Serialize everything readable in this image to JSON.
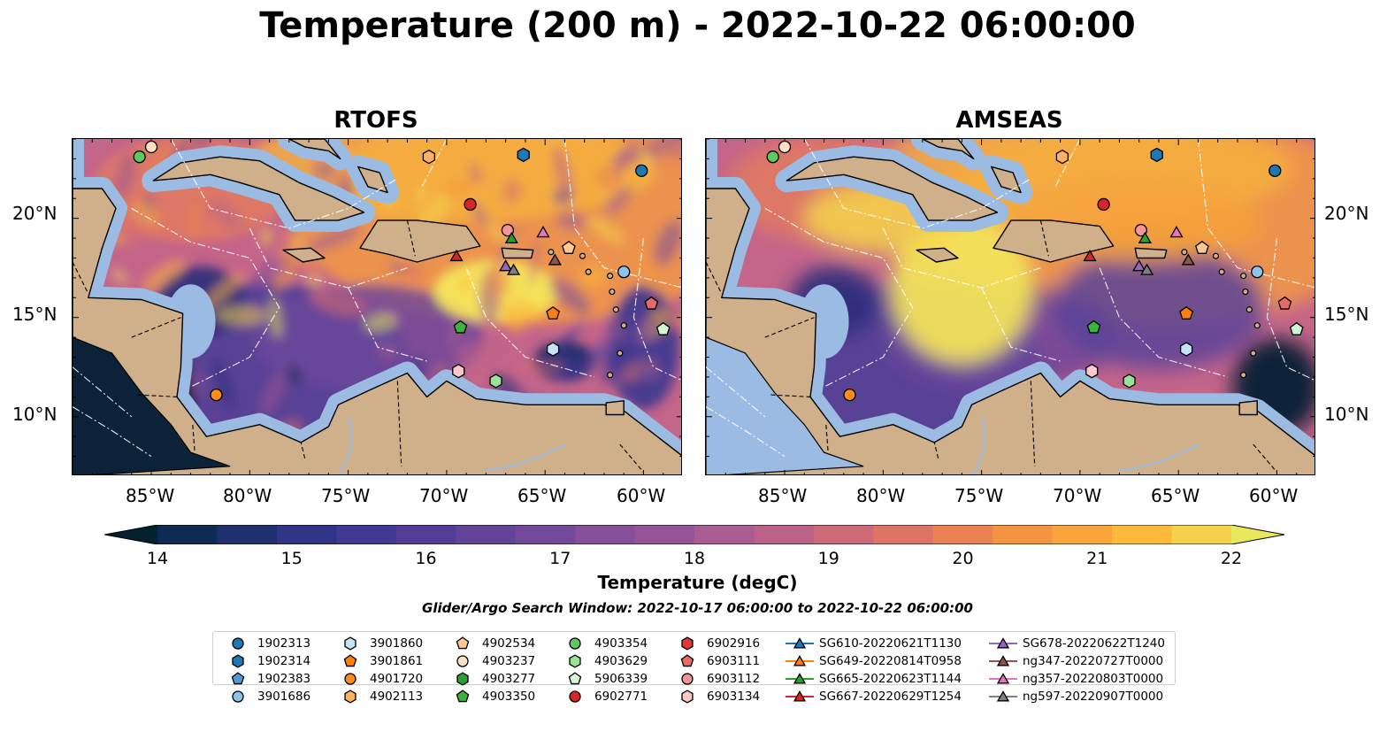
{
  "title": "Temperature (200 m) - 2022-10-22 06:00:00",
  "panels": [
    {
      "title": "RTOFS"
    },
    {
      "title": "AMSEAS"
    }
  ],
  "lon_labels": [
    "85°W",
    "80°W",
    "75°W",
    "70°W",
    "65°W",
    "60°W"
  ],
  "lat_labels": [
    "20°N",
    "15°N",
    "10°N"
  ],
  "map_extent": {
    "lon": [
      -89,
      -58
    ],
    "lat": [
      7,
      24
    ]
  },
  "colorbar": {
    "label": "Temperature (degC)",
    "min": 14,
    "max": 22,
    "step": 0.5,
    "ticks": [
      "14",
      "15",
      "16",
      "17",
      "18",
      "19",
      "20",
      "21",
      "22"
    ],
    "extend": "both",
    "colors": [
      "#05202f",
      "#0e2c51",
      "#1f2f70",
      "#303486",
      "#403a93",
      "#523e97",
      "#62449a",
      "#73499b",
      "#854f9a",
      "#965597",
      "#a85c91",
      "#bb6286",
      "#cd6a78",
      "#dd7465",
      "#ea8252",
      "#f49342",
      "#f9a53b",
      "#fbba3c",
      "#f6d14b",
      "#e9e85d"
    ]
  },
  "search_window": "Glider/Argo Search Window: 2022-10-17 06:00:00 to 2022-10-22 06:00:00",
  "legend_columns": [
    [
      {
        "label": "1902313",
        "marker": "circle",
        "color": "#1f77b4"
      },
      {
        "label": "1902314",
        "marker": "hexagon",
        "color": "#1f77b4"
      },
      {
        "label": "1902383",
        "marker": "pentagon",
        "color": "#4f9bd8"
      },
      {
        "label": "3901686",
        "marker": "circle",
        "color": "#8ec3ea"
      }
    ],
    [
      {
        "label": "3901860",
        "marker": "hexagon",
        "color": "#c6e2f5"
      },
      {
        "label": "3901861",
        "marker": "pentagon",
        "color": "#ff7f0e"
      },
      {
        "label": "4901720",
        "marker": "circle",
        "color": "#ff8c1a"
      },
      {
        "label": "4902113",
        "marker": "hexagon",
        "color": "#ffb061"
      }
    ],
    [
      {
        "label": "4902534",
        "marker": "pentagon",
        "color": "#ffc88f"
      },
      {
        "label": "4903237",
        "marker": "circle",
        "color": "#ffe0c2"
      },
      {
        "label": "4903277",
        "marker": "hexagon",
        "color": "#2ca02c"
      },
      {
        "label": "4903350",
        "marker": "pentagon",
        "color": "#3cb33c"
      }
    ],
    [
      {
        "label": "4903354",
        "marker": "circle",
        "color": "#5fc95f"
      },
      {
        "label": "4903629",
        "marker": "hexagon",
        "color": "#98e398"
      },
      {
        "label": "5906339",
        "marker": "pentagon",
        "color": "#d4f5d4"
      },
      {
        "label": "6902771",
        "marker": "circle",
        "color": "#d62728"
      }
    ],
    [
      {
        "label": "6902916",
        "marker": "hexagon",
        "color": "#dc3a3a"
      },
      {
        "label": "6903111",
        "marker": "pentagon",
        "color": "#ea6a6a"
      },
      {
        "label": "6903112",
        "marker": "circle",
        "color": "#f29797"
      },
      {
        "label": "6903134",
        "marker": "hexagon",
        "color": "#fbc9c9"
      }
    ],
    [
      {
        "label": "SG610-20220621T1130",
        "marker": "triangle",
        "color": "#1f77b4"
      },
      {
        "label": "SG649-20220814T0958",
        "marker": "triangle",
        "color": "#ff7f0e"
      },
      {
        "label": "SG665-20220623T1144",
        "marker": "triangle",
        "color": "#2ca02c"
      },
      {
        "label": "SG667-20220629T1254",
        "marker": "triangle",
        "color": "#d62728"
      }
    ],
    [
      {
        "label": "SG678-20220622T1240",
        "marker": "triangle",
        "color": "#9467bd"
      },
      {
        "label": "ng347-20220727T0000",
        "marker": "triangle",
        "color": "#8c564b"
      },
      {
        "label": "ng357-20220803T0000",
        "marker": "triangle",
        "color": "#e377c2"
      },
      {
        "label": "ng597-20220907T0000",
        "marker": "triangle",
        "color": "#7f7f7f"
      }
    ]
  ],
  "float_positions": [
    {
      "id": "1902313",
      "lon": -60.1,
      "lat": 22.4
    },
    {
      "id": "1902314",
      "lon": -66.1,
      "lat": 23.2
    },
    {
      "id": "3901686",
      "lon": -61.0,
      "lat": 17.3
    },
    {
      "id": "3901860",
      "lon": -64.6,
      "lat": 13.4
    },
    {
      "id": "3901861",
      "lon": -64.6,
      "lat": 15.2
    },
    {
      "id": "4901720",
      "lon": -81.7,
      "lat": 11.1
    },
    {
      "id": "4902113",
      "lon": -70.9,
      "lat": 23.1
    },
    {
      "id": "4902534",
      "lon": -63.8,
      "lat": 18.5
    },
    {
      "id": "4903237",
      "lon": -85.0,
      "lat": 23.6
    },
    {
      "id": "4903350",
      "lon": -69.3,
      "lat": 14.5
    },
    {
      "id": "4903354",
      "lon": -85.6,
      "lat": 23.1
    },
    {
      "id": "4903629",
      "lon": -67.5,
      "lat": 11.8
    },
    {
      "id": "5906339",
      "lon": -59.0,
      "lat": 14.4
    },
    {
      "id": "6902771",
      "lon": -68.8,
      "lat": 20.7
    },
    {
      "id": "6903111",
      "lon": -59.6,
      "lat": 15.7
    },
    {
      "id": "6903112",
      "lon": -66.9,
      "lat": 19.4
    },
    {
      "id": "6903134",
      "lon": -69.4,
      "lat": 12.3
    },
    {
      "id": "SG665-20220623T1144",
      "lon": -66.7,
      "lat": 19.0
    },
    {
      "id": "SG667-20220629T1254",
      "lon": -69.5,
      "lat": 18.1
    },
    {
      "id": "SG678-20220622T1240",
      "lon": -67.0,
      "lat": 17.6
    },
    {
      "id": "ng347-20220727T0000",
      "lon": -64.5,
      "lat": 17.9
    },
    {
      "id": "ng357-20220803T0000",
      "lon": -65.1,
      "lat": 19.3
    },
    {
      "id": "ng597-20220907T0000",
      "lon": -66.6,
      "lat": 17.4
    }
  ]
}
